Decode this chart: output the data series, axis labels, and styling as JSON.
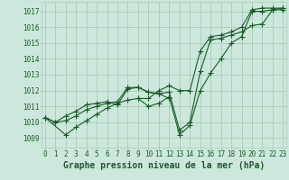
{
  "hours": [
    0,
    1,
    2,
    3,
    4,
    5,
    6,
    7,
    8,
    9,
    10,
    11,
    12,
    13,
    14,
    15,
    16,
    17,
    18,
    19,
    20,
    21,
    22,
    23
  ],
  "line1": [
    1010.3,
    1010.0,
    1010.4,
    1010.7,
    1011.1,
    1011.2,
    1011.3,
    1011.1,
    1012.1,
    1012.2,
    1011.9,
    1011.8,
    1011.5,
    null,
    null,
    null,
    null,
    null,
    null,
    null,
    null,
    null,
    null,
    null
  ],
  "line2": [
    1010.3,
    null,
    1009.2,
    1009.7,
    1010.1,
    1010.5,
    1010.9,
    1011.2,
    1011.4,
    1011.5,
    1011.0,
    1011.2,
    1011.6,
    1009.2,
    1009.8,
    1012.0,
    1013.1,
    1014.0,
    1015.0,
    1015.4,
    1017.0,
    1017.0,
    1017.1,
    1017.1
  ],
  "line3": [
    1010.3,
    1010.0,
    1010.1,
    1010.4,
    1010.8,
    1011.0,
    1011.2,
    1011.3,
    1012.2,
    1012.2,
    1011.9,
    1011.8,
    1011.9,
    1009.5,
    1010.0,
    1013.2,
    1015.2,
    1015.3,
    1015.5,
    1015.7,
    1016.1,
    1016.2,
    1017.1,
    1017.2
  ],
  "line4": [
    null,
    null,
    null,
    null,
    null,
    null,
    null,
    null,
    null,
    1011.5,
    1011.5,
    1012.0,
    1012.3,
    1012.0,
    1012.0,
    1014.5,
    1015.4,
    1015.5,
    1015.7,
    1016.0,
    1017.1,
    1017.2,
    1017.2,
    1017.2
  ],
  "bg_color": "#cce8dc",
  "grid_color": "#aaccbc",
  "line_color": "#1a5c28",
  "marker": "+",
  "markersize": 4,
  "linewidth": 0.8,
  "ylabel_ticks": [
    1009,
    1010,
    1011,
    1012,
    1013,
    1014,
    1015,
    1016,
    1017
  ],
  "ylim": [
    1008.4,
    1017.6
  ],
  "xlim": [
    -0.3,
    23.3
  ],
  "xlabel": "Graphe pression niveau de la mer (hPa)",
  "xlabel_fontsize": 7,
  "tick_fontsize": 5.5,
  "title_color": "#1a5c28"
}
